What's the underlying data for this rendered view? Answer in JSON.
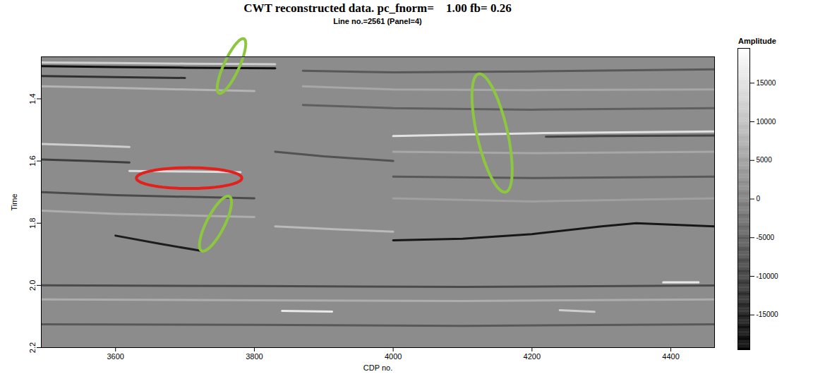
{
  "chart_data": {
    "type": "heatmap",
    "title": "CWT reconstructed data. pc_fnorm=    1.00 fb= 0.26",
    "subtitle": "Line no.=2561 (Panel=4)",
    "x_label": "CDP no.",
    "y_label": "Time",
    "xlim": [
      3493,
      4463
    ],
    "xticks": [
      3600,
      3800,
      4000,
      4200,
      4400
    ],
    "ylim": [
      1.265,
      2.2
    ],
    "yticks": [
      1.4,
      1.6,
      1.8,
      {
        "value": 2,
        "label": "2.0"
      },
      2.2
    ],
    "colorbar": {
      "label": "Amplitude",
      "range": [
        -19500,
        19500
      ],
      "ticks": [
        -15000,
        -10000,
        -5000,
        0,
        5000,
        10000,
        15000
      ]
    },
    "reflectors": [
      {
        "cdp": [
          3494,
          3600,
          3700,
          3830
        ],
        "time": [
          1.295,
          1.298,
          1.3,
          1.302
        ],
        "amplitude": -17000
      },
      {
        "cdp": [
          3494,
          3600,
          3700,
          3830
        ],
        "time": [
          1.283,
          1.285,
          1.287,
          1.289
        ],
        "amplitude": 12000
      },
      {
        "cdp": [
          3494,
          3600,
          3700
        ],
        "time": [
          1.327,
          1.33,
          1.333
        ],
        "amplitude": -12000
      },
      {
        "cdp": [
          3494,
          3600,
          3700,
          3800
        ],
        "time": [
          1.36,
          1.365,
          1.37,
          1.375
        ],
        "amplitude": 8000
      },
      {
        "cdp": [
          3870,
          4000,
          4200,
          4463
        ],
        "time": [
          1.31,
          1.315,
          1.312,
          1.305
        ],
        "amplitude": -6000
      },
      {
        "cdp": [
          3870,
          4000,
          4200,
          4463
        ],
        "time": [
          1.36,
          1.37,
          1.372,
          1.37
        ],
        "amplitude": 6000
      },
      {
        "cdp": [
          3870,
          4000,
          4200,
          4463
        ],
        "time": [
          1.42,
          1.43,
          1.435,
          1.43
        ],
        "amplitude": -5000
      },
      {
        "cdp": [
          4000,
          4100,
          4220,
          4463
        ],
        "time": [
          1.52,
          1.515,
          1.51,
          1.505
        ],
        "amplitude": 15000
      },
      {
        "cdp": [
          4220,
          4300,
          4463
        ],
        "time": [
          1.522,
          1.52,
          1.518
        ],
        "amplitude": -9000
      },
      {
        "cdp": [
          3494,
          3560,
          3620
        ],
        "time": [
          1.545,
          1.55,
          1.555
        ],
        "amplitude": 12000
      },
      {
        "cdp": [
          3620,
          3700,
          3780
        ],
        "time": [
          1.632,
          1.634,
          1.636
        ],
        "amplitude": 14000
      },
      {
        "cdp": [
          3494,
          3560,
          3620
        ],
        "time": [
          1.595,
          1.6,
          1.605
        ],
        "amplitude": -10000
      },
      {
        "cdp": [
          3830,
          3900,
          4000
        ],
        "time": [
          1.57,
          1.585,
          1.6
        ],
        "amplitude": -7000
      },
      {
        "cdp": [
          4000,
          4200,
          4463
        ],
        "time": [
          1.57,
          1.575,
          1.57
        ],
        "amplitude": 6000
      },
      {
        "cdp": [
          4000,
          4200,
          4463
        ],
        "time": [
          1.65,
          1.655,
          1.65
        ],
        "amplitude": -6000
      },
      {
        "cdp": [
          4000,
          4200,
          4463
        ],
        "time": [
          1.72,
          1.73,
          1.72
        ],
        "amplitude": 5000
      },
      {
        "cdp": [
          4000,
          4100,
          4200,
          4300,
          4350,
          4463
        ],
        "time": [
          1.855,
          1.85,
          1.835,
          1.81,
          1.8,
          1.81
        ],
        "amplitude": -16000
      },
      {
        "cdp": [
          3600,
          3663,
          3724
        ],
        "time": [
          1.84,
          1.866,
          1.889
        ],
        "amplitude": -15000
      },
      {
        "cdp": [
          3830,
          3920,
          4000
        ],
        "time": [
          1.81,
          1.82,
          1.827
        ],
        "amplitude": 9000
      },
      {
        "cdp": [
          3494,
          3800,
          4100,
          4463
        ],
        "time": [
          2.0,
          2.002,
          2.005,
          2.0
        ],
        "amplitude": -8000
      },
      {
        "cdp": [
          3494,
          3800,
          4100,
          4463
        ],
        "time": [
          2.045,
          2.048,
          2.05,
          2.045
        ],
        "amplitude": 7000
      },
      {
        "cdp": [
          3494,
          3800,
          4100,
          4463
        ],
        "time": [
          2.125,
          2.127,
          2.13,
          2.125
        ],
        "amplitude": -6000
      },
      {
        "cdp": [
          3840,
          3912
        ],
        "time": [
          2.082,
          2.084
        ],
        "amplitude": 16000
      },
      {
        "cdp": [
          4389,
          4440
        ],
        "time": [
          1.99,
          1.99
        ],
        "amplitude": 16000
      },
      {
        "cdp": [
          4240,
          4290
        ],
        "time": [
          2.08,
          2.085
        ],
        "amplitude": 12000
      },
      {
        "cdp": [
          3494,
          3600,
          3800
        ],
        "time": [
          1.7,
          1.71,
          1.72
        ],
        "amplitude": -8000
      },
      {
        "cdp": [
          3494,
          3600,
          3800
        ],
        "time": [
          1.76,
          1.77,
          1.78
        ],
        "amplitude": 7000
      }
    ],
    "annotations": [
      {
        "shape": "ellipse",
        "color": "#8dc63f",
        "from": [
          3785,
          1.207
        ],
        "to": [
          3749,
          1.382
        ],
        "half_width": 11
      },
      {
        "shape": "ellipse",
        "color": "#e3201b",
        "from": [
          3630,
          1.655
        ],
        "to": [
          3782,
          1.655
        ],
        "half_width": 15
      },
      {
        "shape": "ellipse",
        "color": "#8dc63f",
        "from": [
          3764,
          1.714
        ],
        "to": [
          3724,
          1.889
        ],
        "half_width": 13
      },
      {
        "shape": "ellipse",
        "color": "#8dc63f",
        "from": [
          4123,
          1.32
        ],
        "to": [
          4162,
          1.7
        ],
        "half_width": 22
      }
    ]
  }
}
